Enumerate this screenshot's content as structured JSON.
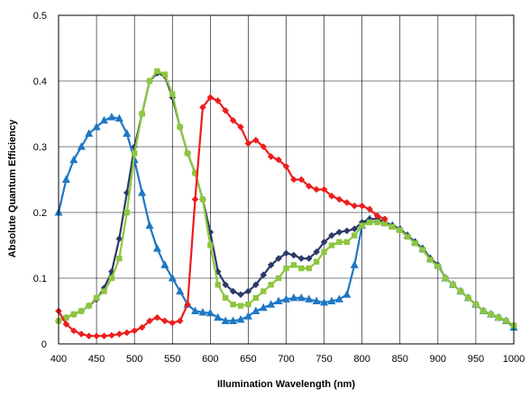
{
  "chart_data": {
    "type": "line",
    "title": "",
    "xlabel": "Illumination Wavelength (nm)",
    "ylabel": "Absolute Quantum Efficiency",
    "xlim": [
      400,
      1000
    ],
    "ylim": [
      0,
      0.5
    ],
    "xticks": [
      400,
      450,
      500,
      550,
      600,
      650,
      700,
      750,
      800,
      850,
      900,
      950,
      1000
    ],
    "yticks": [
      0,
      0.1,
      0.2,
      0.3,
      0.4,
      0.5
    ],
    "xtick_labels": [
      "400",
      "450",
      "500",
      "550",
      "600",
      "650",
      "700",
      "750",
      "800",
      "850",
      "900",
      "950",
      "1000"
    ],
    "ytick_labels": [
      "0",
      "0.1",
      "0.2",
      "0.3",
      "0.4",
      "0.5"
    ],
    "grid": true,
    "legend": null,
    "series": [
      {
        "color": "#1f77c4",
        "marker": "triangle",
        "x": [
          400,
          410,
          420,
          430,
          440,
          450,
          460,
          470,
          480,
          490,
          500,
          510,
          520,
          530,
          540,
          550,
          560,
          570,
          580,
          590,
          600,
          610,
          620,
          630,
          640,
          650,
          660,
          670,
          680,
          690,
          700,
          710,
          720,
          730,
          740,
          750,
          760,
          770,
          780,
          790,
          800,
          810,
          820,
          830,
          840,
          850,
          860,
          870,
          880,
          890,
          900,
          910,
          920,
          930,
          940,
          950,
          960,
          970,
          980,
          990,
          1000
        ],
        "y": [
          0.2,
          0.25,
          0.28,
          0.3,
          0.32,
          0.33,
          0.34,
          0.345,
          0.343,
          0.32,
          0.28,
          0.23,
          0.18,
          0.145,
          0.12,
          0.1,
          0.08,
          0.06,
          0.05,
          0.048,
          0.047,
          0.04,
          0.035,
          0.035,
          0.037,
          0.042,
          0.05,
          0.055,
          0.06,
          0.065,
          0.068,
          0.07,
          0.07,
          0.068,
          0.065,
          0.063,
          0.065,
          0.068,
          0.075,
          0.12,
          0.18,
          0.19,
          0.19,
          0.185,
          0.18,
          0.175,
          0.165,
          0.155,
          0.145,
          0.13,
          0.12,
          0.1,
          0.09,
          0.08,
          0.07,
          0.06,
          0.05,
          0.045,
          0.04,
          0.035,
          0.025
        ]
      },
      {
        "color": "#2b3a67",
        "marker": "diamond",
        "x": [
          400,
          410,
          420,
          430,
          440,
          450,
          460,
          470,
          480,
          490,
          500,
          510,
          520,
          530,
          540,
          550,
          560,
          570,
          580,
          590,
          600,
          610,
          620,
          630,
          640,
          650,
          660,
          670,
          680,
          690,
          700,
          710,
          720,
          730,
          740,
          750,
          760,
          770,
          780,
          790,
          800,
          810,
          820,
          830,
          840,
          850,
          860,
          870,
          880,
          890,
          900,
          910,
          920,
          930,
          940,
          950,
          960,
          970,
          980,
          990,
          1000
        ],
        "y": [
          0.035,
          0.04,
          0.045,
          0.05,
          0.058,
          0.068,
          0.085,
          0.11,
          0.16,
          0.23,
          0.3,
          0.35,
          0.4,
          0.412,
          0.408,
          0.375,
          0.33,
          0.29,
          0.26,
          0.22,
          0.17,
          0.11,
          0.09,
          0.08,
          0.075,
          0.08,
          0.09,
          0.105,
          0.12,
          0.13,
          0.138,
          0.135,
          0.13,
          0.13,
          0.14,
          0.155,
          0.165,
          0.17,
          0.172,
          0.175,
          0.185,
          0.19,
          0.19,
          0.185,
          0.18,
          0.175,
          0.165,
          0.155,
          0.145,
          0.13,
          0.12,
          0.1,
          0.09,
          0.08,
          0.07,
          0.06,
          0.05,
          0.045,
          0.04,
          0.035,
          0.028
        ]
      },
      {
        "color": "#8dc63f",
        "marker": "square",
        "x": [
          400,
          410,
          420,
          430,
          440,
          450,
          460,
          470,
          480,
          490,
          500,
          510,
          520,
          530,
          540,
          550,
          560,
          570,
          580,
          590,
          600,
          610,
          620,
          630,
          640,
          650,
          660,
          670,
          680,
          690,
          700,
          710,
          720,
          730,
          740,
          750,
          760,
          770,
          780,
          790,
          800,
          810,
          820,
          830,
          840,
          850,
          860,
          870,
          880,
          890,
          900,
          910,
          920,
          930,
          940,
          950,
          960,
          970,
          980,
          990,
          1000
        ],
        "y": [
          0.035,
          0.04,
          0.045,
          0.05,
          0.058,
          0.07,
          0.08,
          0.1,
          0.13,
          0.2,
          0.29,
          0.35,
          0.4,
          0.415,
          0.41,
          0.38,
          0.33,
          0.29,
          0.26,
          0.22,
          0.15,
          0.09,
          0.07,
          0.06,
          0.058,
          0.06,
          0.07,
          0.08,
          0.09,
          0.1,
          0.115,
          0.12,
          0.115,
          0.115,
          0.125,
          0.14,
          0.15,
          0.155,
          0.155,
          0.165,
          0.18,
          0.185,
          0.185,
          0.183,
          0.178,
          0.173,
          0.163,
          0.153,
          0.143,
          0.128,
          0.118,
          0.1,
          0.09,
          0.08,
          0.07,
          0.06,
          0.05,
          0.045,
          0.04,
          0.035,
          0.028
        ]
      },
      {
        "color": "#ee1c1c",
        "marker": "diamond",
        "x": [
          400,
          410,
          420,
          430,
          440,
          450,
          460,
          470,
          480,
          490,
          500,
          510,
          520,
          530,
          540,
          550,
          560,
          570,
          580,
          590,
          600,
          610,
          620,
          630,
          640,
          650,
          660,
          670,
          680,
          690,
          700,
          710,
          720,
          730,
          740,
          750,
          760,
          770,
          780,
          790,
          800,
          810,
          820,
          830
        ],
        "y": [
          0.05,
          0.03,
          0.02,
          0.015,
          0.012,
          0.012,
          0.012,
          0.013,
          0.015,
          0.017,
          0.02,
          0.025,
          0.035,
          0.04,
          0.035,
          0.032,
          0.035,
          0.06,
          0.22,
          0.36,
          0.375,
          0.37,
          0.355,
          0.34,
          0.33,
          0.305,
          0.31,
          0.3,
          0.285,
          0.28,
          0.27,
          0.25,
          0.25,
          0.24,
          0.235,
          0.235,
          0.225,
          0.22,
          0.215,
          0.21,
          0.21,
          0.205,
          0.195,
          0.19
        ]
      }
    ]
  }
}
